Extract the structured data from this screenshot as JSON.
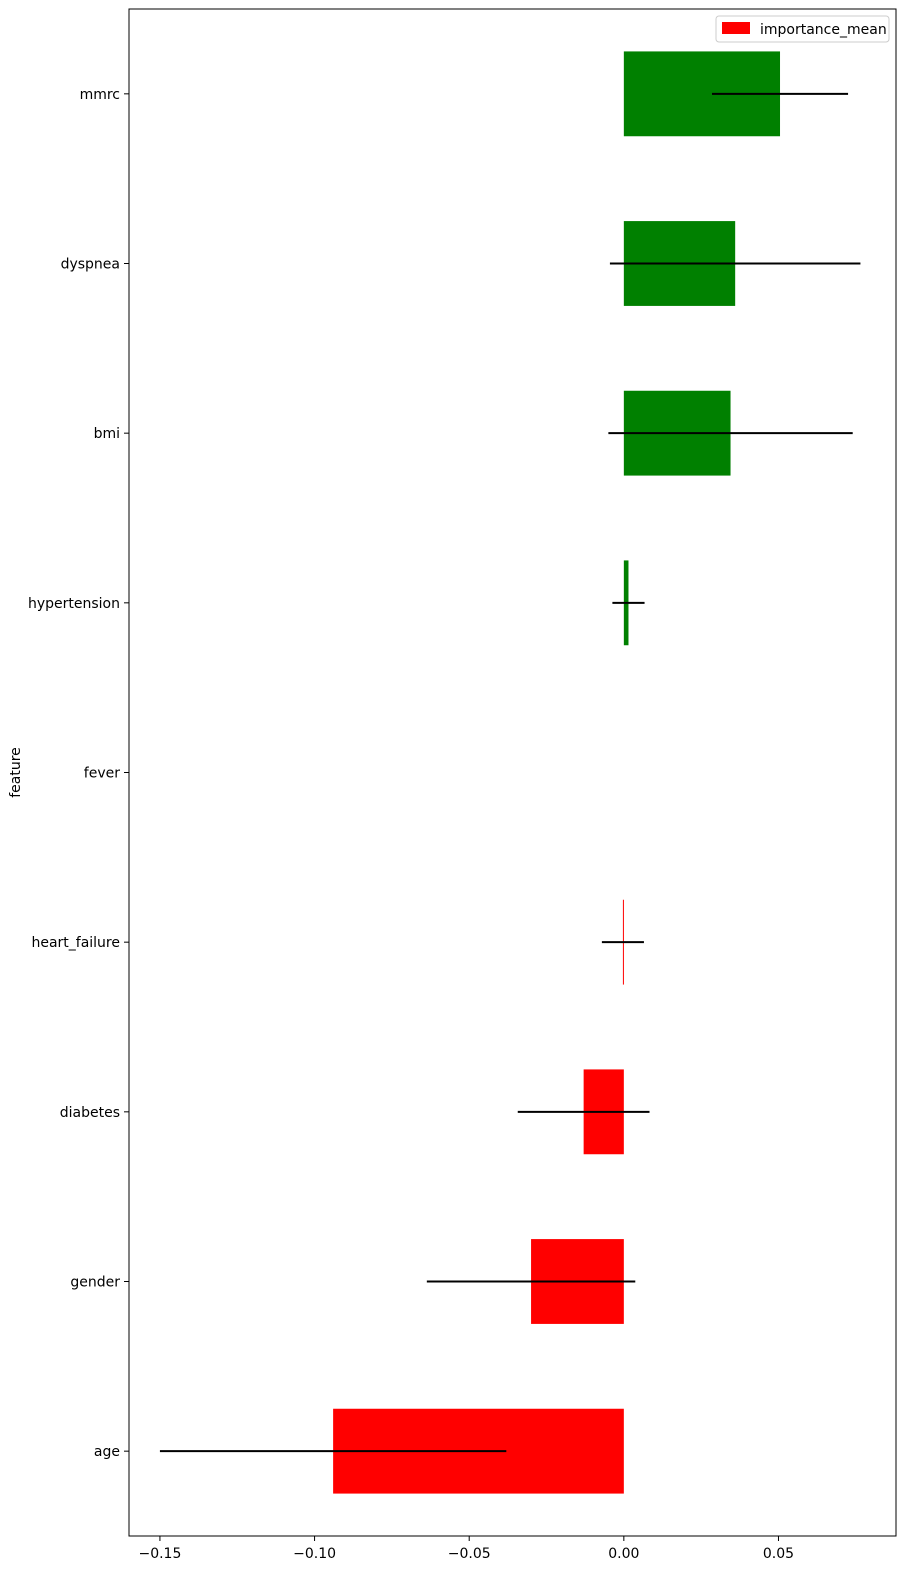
{
  "chart_data": {
    "type": "bar",
    "orientation": "horizontal",
    "ylabel": "feature",
    "xlabel": "",
    "xlim": [
      -0.16,
      0.088
    ],
    "xticks": [
      -0.15,
      -0.1,
      -0.05,
      0.0,
      0.05
    ],
    "xtick_labels": [
      "−0.15",
      "−0.10",
      "−0.05",
      "0.00",
      "0.05"
    ],
    "legend": {
      "label": "importance_mean",
      "color": "#ff0000",
      "placement": "top-right"
    },
    "colors": {
      "positive": "#008000",
      "negative": "#ff0000",
      "error_bar": "#000000"
    },
    "categories": [
      "mmrc",
      "dyspnea",
      "bmi",
      "hypertension",
      "fever",
      "heart_failure",
      "diabetes",
      "gender",
      "age"
    ],
    "values": [
      0.0505,
      0.036,
      0.0345,
      0.0015,
      0.0,
      -0.0003,
      -0.013,
      -0.03,
      -0.094
    ],
    "errors": [
      0.022,
      0.0405,
      0.0395,
      0.0052,
      0.0,
      0.0068,
      0.0213,
      0.0337,
      0.056
    ],
    "grid": false
  }
}
